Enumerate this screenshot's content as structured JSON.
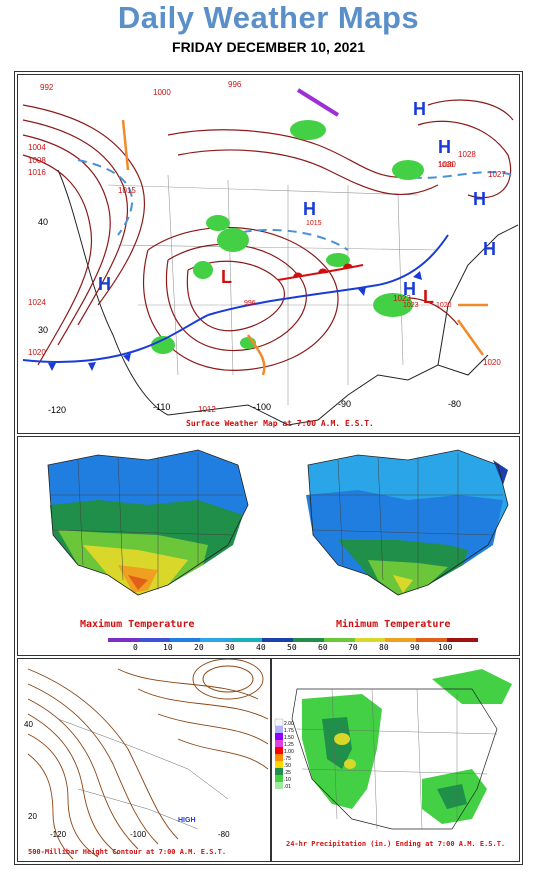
{
  "header": {
    "title": "Daily Weather Maps",
    "date": "FRIDAY DECEMBER 10, 2021"
  },
  "surface_map": {
    "caption": "Surface Weather Map at 7:00 A.M. E.S.T.",
    "lat_labels": [
      "40",
      "30"
    ],
    "lon_labels": [
      "-120",
      "-110",
      "-100",
      "-90",
      "-80"
    ],
    "isobar_labels": [
      "992",
      "996",
      "1000",
      "1004",
      "1008",
      "1012",
      "1016",
      "1020",
      "1024",
      "1027",
      "1028",
      "1030",
      "1015",
      "1023",
      "1020"
    ],
    "pressure_centers": [
      {
        "type": "H",
        "value": "1030"
      },
      {
        "type": "H",
        "value": ""
      },
      {
        "type": "H",
        "value": "1015"
      },
      {
        "type": "H",
        "value": ""
      },
      {
        "type": "H",
        "value": ""
      },
      {
        "type": "H",
        "value": "1023"
      },
      {
        "type": "L",
        "value": "996"
      },
      {
        "type": "L",
        "value": "1020"
      }
    ]
  },
  "temperature": {
    "max_label": "Maximum Temperature",
    "min_label": "Minimum Temperature",
    "scale": [
      "0",
      "10",
      "20",
      "30",
      "40",
      "50",
      "60",
      "70",
      "80",
      "90",
      "100"
    ],
    "scale_colors": [
      "#7a2fc4",
      "#3d52d6",
      "#1f7ee0",
      "#2aa6e8",
      "#1ab0b8",
      "#1d3fa8",
      "#1f8f4a",
      "#6cc63a",
      "#d9d82a",
      "#f0a020",
      "#e06018",
      "#a01010"
    ]
  },
  "height_500mb": {
    "caption": "500-Millibar Height Contour at 7:00 A.M. E.S.T.",
    "lat_labels": [
      "40",
      "20"
    ],
    "lon_labels": [
      "-120",
      "-100",
      "-80"
    ],
    "center_labels": [
      "HIGH"
    ]
  },
  "precip": {
    "caption": "24-hr Precipitation (in.) Ending at 7:00 A.M. E.S.T.",
    "legend_values": [
      "2.00",
      "1.75",
      "1.50",
      "1.25",
      "1.00",
      ".75",
      ".50",
      ".25",
      ".10",
      ".01"
    ]
  }
}
